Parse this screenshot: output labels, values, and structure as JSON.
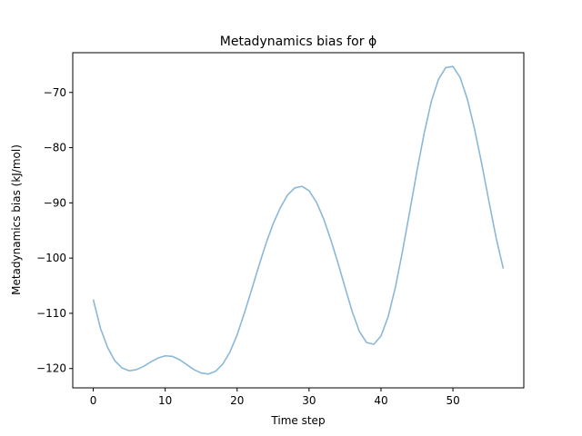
{
  "chart_data": {
    "type": "line",
    "title": "Metadynamics bias for ϕ",
    "xlabel": "Time step",
    "ylabel": "Metadynamics bias (kJ/mol)",
    "xlim": [
      -2.85,
      59.85
    ],
    "ylim": [
      -123.5,
      -62.8
    ],
    "xticks": [
      0,
      10,
      20,
      30,
      40,
      50
    ],
    "yticks": [
      -120,
      -110,
      -100,
      -90,
      -80,
      -70
    ],
    "grid": false,
    "series": [
      {
        "color": "#8ab8d8",
        "x": [
          0,
          1,
          2,
          3,
          4,
          5,
          6,
          7,
          8,
          9,
          10,
          11,
          12,
          13,
          14,
          15,
          16,
          17,
          18,
          19,
          20,
          21,
          22,
          23,
          24,
          25,
          26,
          27,
          28,
          29,
          30,
          31,
          32,
          33,
          34,
          35,
          36,
          37,
          38,
          39,
          40,
          41,
          42,
          43,
          44,
          45,
          46,
          47,
          48,
          49,
          50,
          51,
          52,
          53,
          54,
          55,
          56,
          57
        ],
        "values": [
          -107.5,
          -112.7,
          -116.2,
          -118.6,
          -119.9,
          -120.4,
          -120.2,
          -119.6,
          -118.8,
          -118.1,
          -117.7,
          -117.8,
          -118.4,
          -119.3,
          -120.2,
          -120.8,
          -121.0,
          -120.5,
          -119.2,
          -117.0,
          -113.9,
          -110.0,
          -105.8,
          -101.5,
          -97.4,
          -93.8,
          -90.9,
          -88.6,
          -87.3,
          -87.0,
          -87.8,
          -89.8,
          -92.8,
          -96.6,
          -100.8,
          -105.3,
          -109.7,
          -113.3,
          -115.3,
          -115.6,
          -114.1,
          -110.6,
          -105.3,
          -98.7,
          -91.5,
          -84.2,
          -77.4,
          -71.6,
          -67.6,
          -65.5,
          -65.3,
          -67.3,
          -71.2,
          -76.6,
          -82.9,
          -89.7,
          -96.3,
          -101.9
        ]
      }
    ]
  }
}
